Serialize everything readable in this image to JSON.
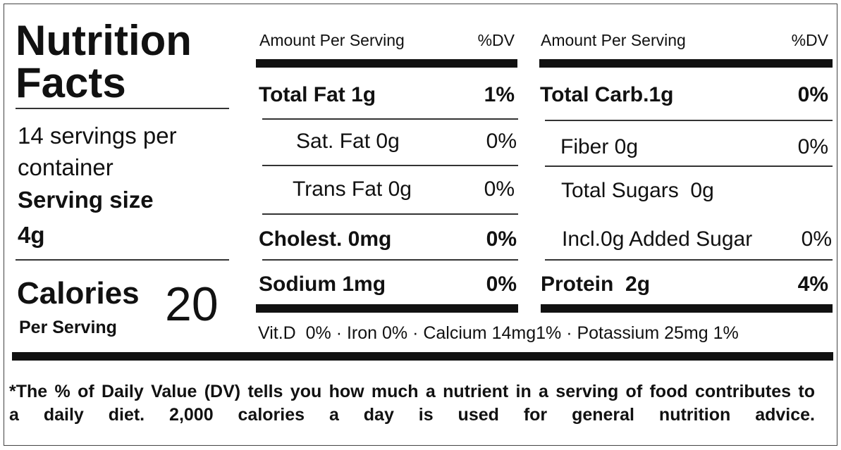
{
  "title": "Nutrition Facts",
  "servings": "14 servings per container",
  "serving_size": {
    "label": "Serving size",
    "value": "4g"
  },
  "calories": {
    "label": "Calories",
    "sublabel": "Per Serving",
    "value": "20"
  },
  "left_table": {
    "header": {
      "amount": "Amount Per Serving",
      "dv": "%DV"
    },
    "rows": [
      [
        "Total Fat 1g",
        "1%"
      ],
      [
        "Sat. Fat 0g",
        "0%"
      ],
      [
        "Trans Fat 0g",
        "0%"
      ],
      [
        "Cholest. 0mg",
        "0%"
      ],
      [
        "Sodium 1mg",
        "0%"
      ]
    ]
  },
  "right_table": {
    "header": {
      "amount": "Amount Per Serving",
      "dv": "%DV"
    },
    "rows": [
      [
        "Total Carb.1g",
        "0%"
      ],
      [
        "Fiber 0g",
        "0%"
      ],
      [
        "Total Sugars  0g"
      ],
      [
        "Incl.0g Added Sugar",
        "0%"
      ],
      [
        "Protein  2g",
        "4%"
      ]
    ]
  },
  "micronutrients": "Vit.D  0% · Iron 0% · Calcium 14mg1% · Potassium 25mg 1%",
  "footnote": "*The % of Daily Value (DV) tells you how much a nutrient in a serving of food contributes to a daily diet. 2,000 calories a day is used for general nutrition advice."
}
